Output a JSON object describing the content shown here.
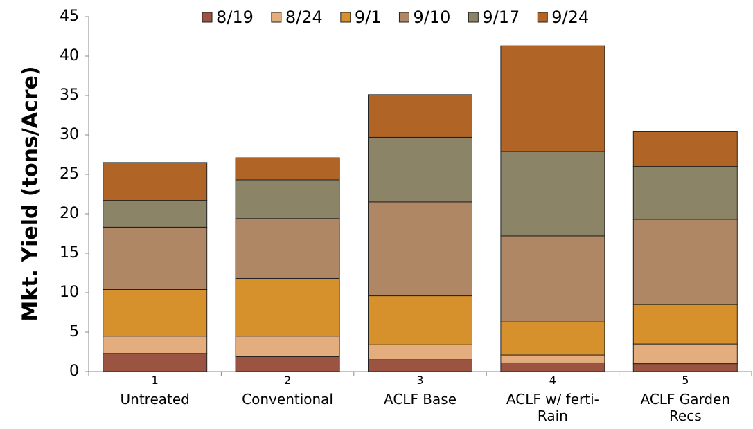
{
  "chart_data": {
    "type": "stacked_bar",
    "y_label": "Mkt. Yield (tons/Acre)",
    "categories": [
      "1",
      "2",
      "3",
      "4",
      "5"
    ],
    "category_names": [
      "Untreated",
      "Conventional",
      "ACLF Base",
      "ACLF w/ ferti-Rain",
      "ACLF Garden Recs"
    ],
    "series": [
      {
        "name": "8/19",
        "color": "#9b5442",
        "values": [
          2.3,
          1.9,
          1.5,
          1.1,
          1.0
        ]
      },
      {
        "name": "8/24",
        "color": "#e4ad7d",
        "values": [
          2.2,
          2.6,
          1.9,
          1.0,
          2.5
        ]
      },
      {
        "name": "9/1",
        "color": "#d6912d",
        "values": [
          5.9,
          7.3,
          6.2,
          4.2,
          5.0
        ]
      },
      {
        "name": "9/10",
        "color": "#b08765",
        "values": [
          7.9,
          7.6,
          11.9,
          10.9,
          10.8
        ]
      },
      {
        "name": "9/17",
        "color": "#8c8466",
        "values": [
          3.4,
          4.9,
          8.2,
          10.7,
          6.7
        ]
      },
      {
        "name": "9/24",
        "color": "#b06527",
        "values": [
          4.8,
          2.8,
          5.4,
          13.4,
          4.4
        ]
      }
    ],
    "ylim": [
      0,
      45
    ],
    "yticks": [
      0,
      5,
      10,
      15,
      20,
      25,
      30,
      35,
      40,
      45
    ],
    "legend": "top"
  }
}
